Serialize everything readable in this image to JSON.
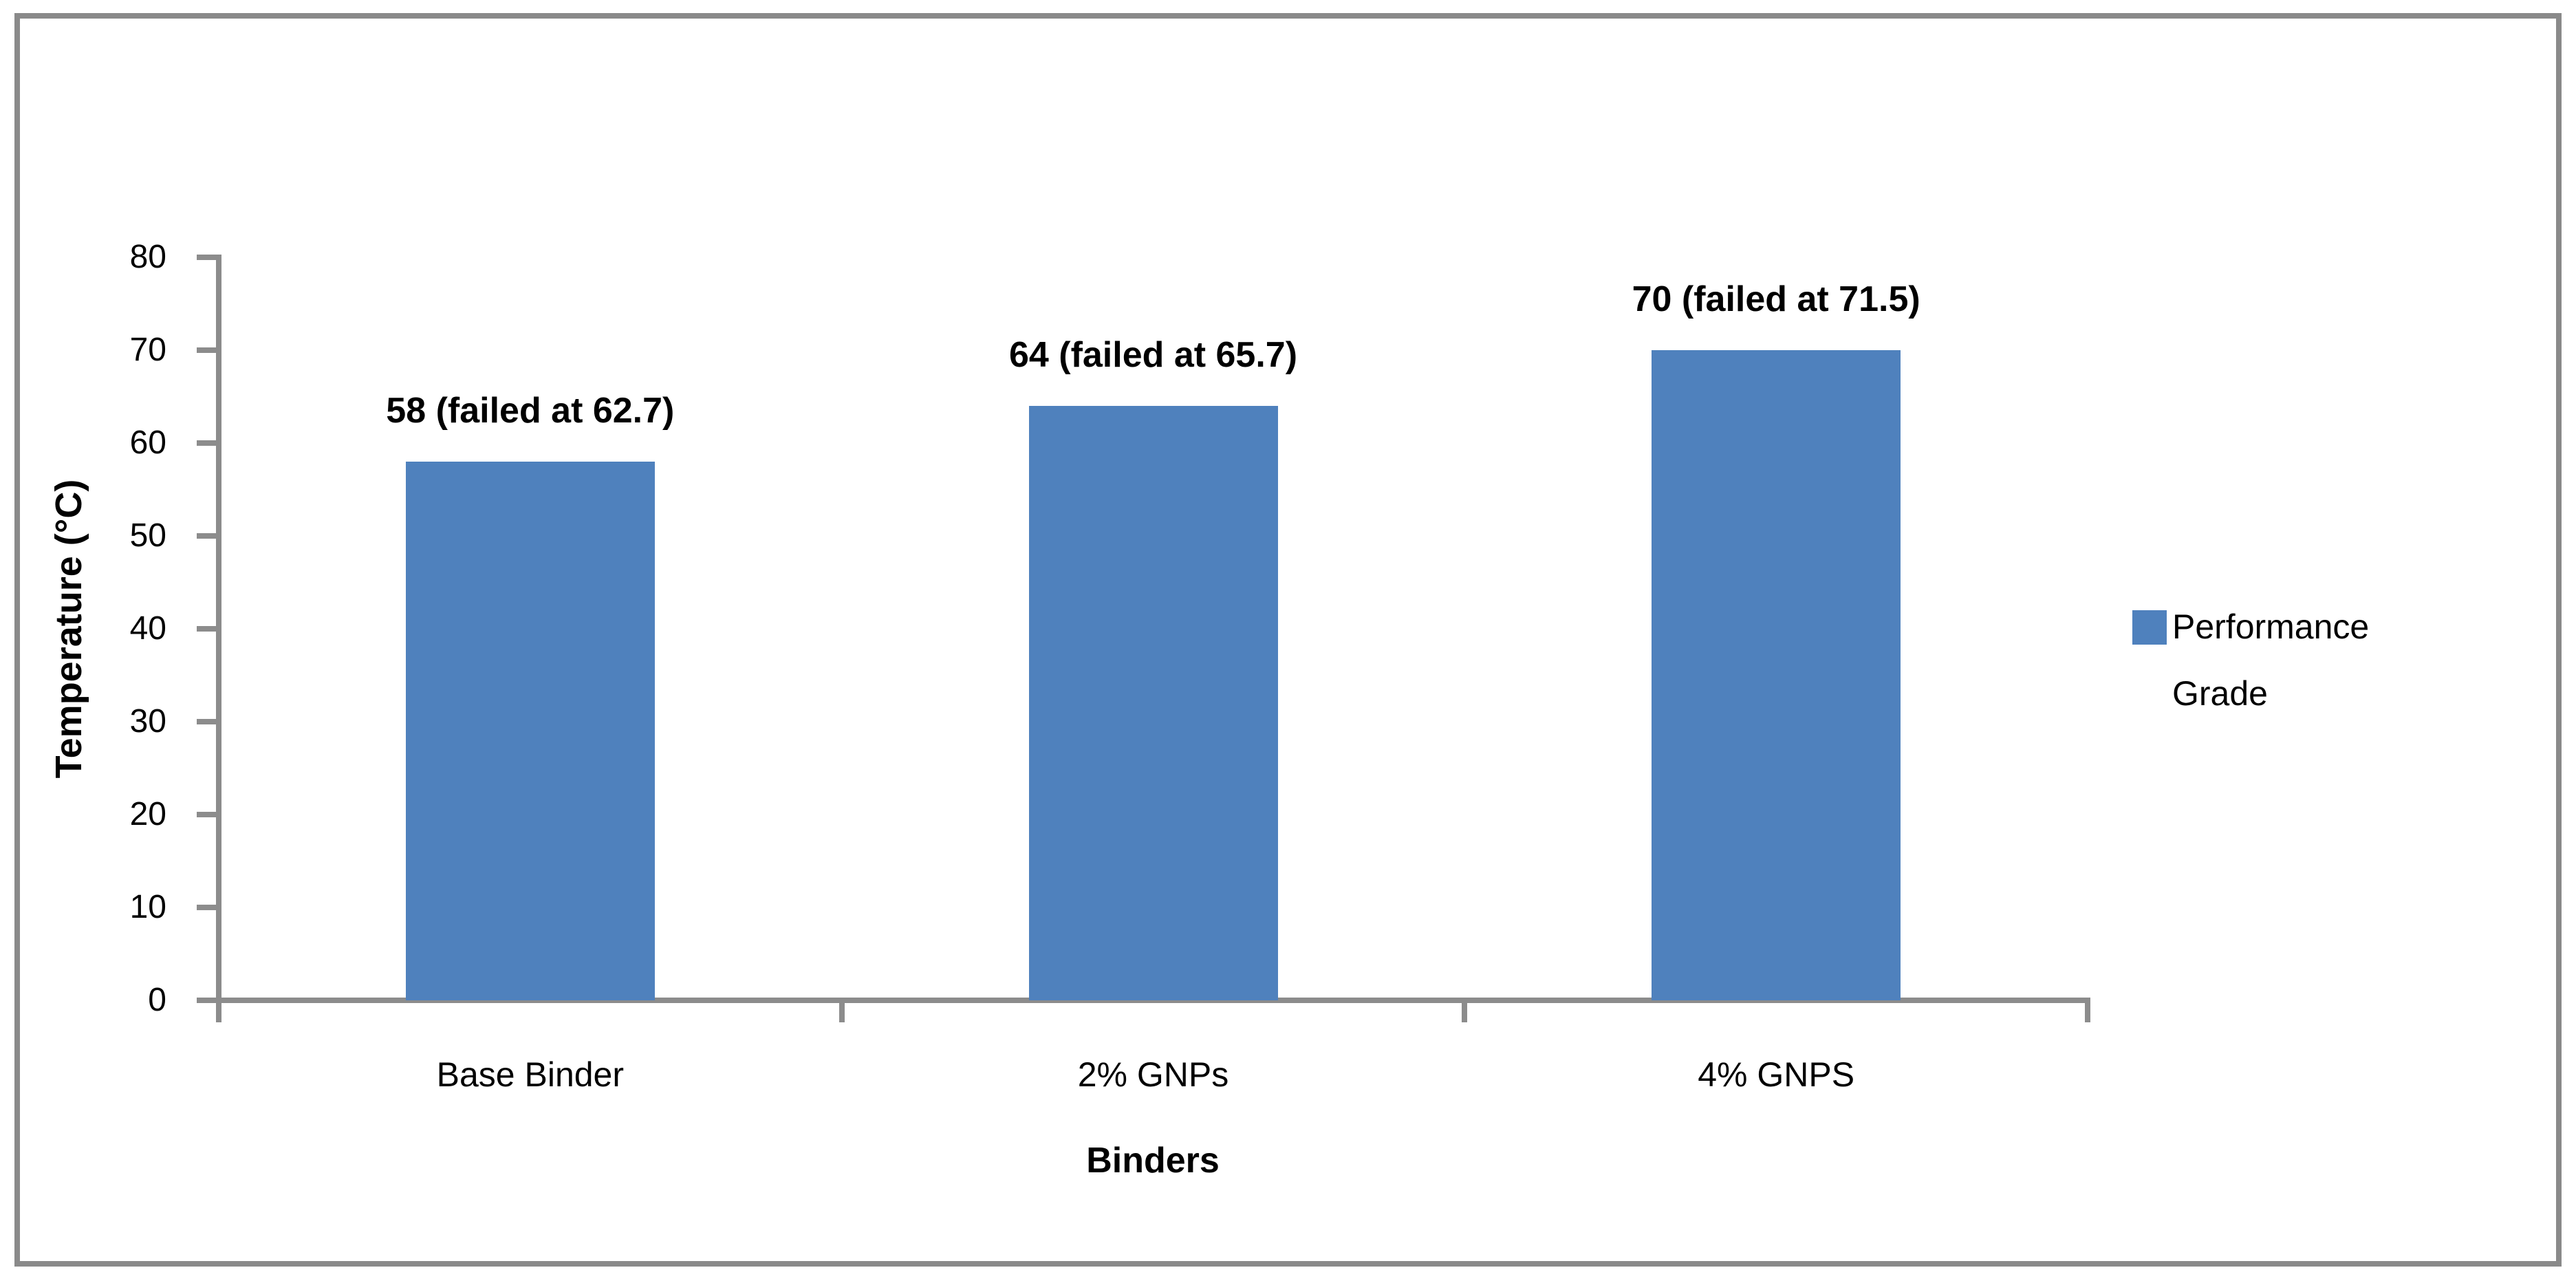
{
  "chart_data": {
    "type": "bar",
    "title": "",
    "categories": [
      "Base Binder",
      "2% GNPs",
      "4% GNPS"
    ],
    "series": [
      {
        "name": "Performance Grade",
        "values": [
          58,
          64,
          70
        ]
      }
    ],
    "data_labels": [
      "58 (failed at 62.7)",
      "64 (failed at 65.7)",
      "70 (failed at 71.5)"
    ],
    "xlabel": "Binders",
    "ylabel": "Temperature (°C)",
    "ylim": [
      0,
      80
    ],
    "ytick_step": 10,
    "ytick_labels": [
      "0",
      "10",
      "20",
      "30",
      "40",
      "50",
      "60",
      "70",
      "80"
    ],
    "grid": false,
    "legend_position": "right",
    "colors": {
      "bar": "#4F81BD",
      "axis": "#8C8C8C",
      "frame_border": "#8A8A8A",
      "text": "#000000",
      "background": "#FFFFFF"
    }
  }
}
